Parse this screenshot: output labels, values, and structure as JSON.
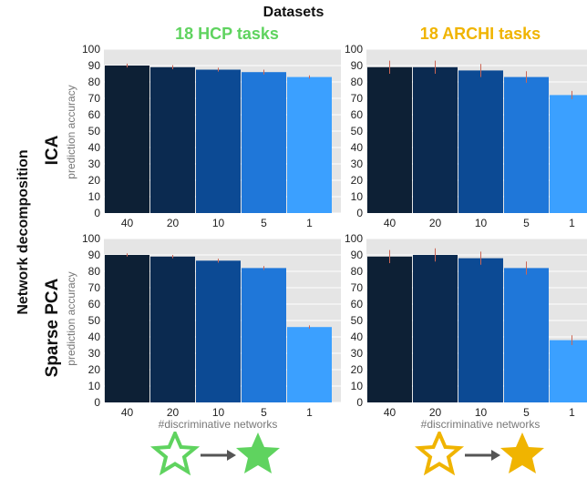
{
  "figure": {
    "title": "Datasets",
    "row_group_label": "Network decomposition",
    "columns": [
      {
        "title": "18 HCP tasks",
        "color": "#5fd35f"
      },
      {
        "title": "18 ARCHI tasks",
        "color": "#f0b400"
      }
    ],
    "rows": [
      {
        "label": "ICA"
      },
      {
        "label": "Sparse PCA"
      }
    ],
    "ylabel": "prediction accuracy",
    "xlabel": "#discriminative networks",
    "star_colors": {
      "hcp": "#5fd35f",
      "archi": "#f0b400"
    },
    "arrow_color": "#555555"
  },
  "chart_data": [
    {
      "type": "bar",
      "panel": "ICA / 18 HCP tasks",
      "categories": [
        "40",
        "20",
        "10",
        "5",
        "1"
      ],
      "values": [
        90,
        89,
        87.5,
        86,
        83
      ],
      "errors": [
        1.2,
        1.2,
        1.2,
        1.5,
        1.0
      ],
      "ylim": [
        0,
        100
      ],
      "yticks": [
        0,
        10,
        20,
        30,
        40,
        50,
        60,
        70,
        80,
        90,
        100
      ],
      "colors": [
        "#0d2035",
        "#0b2a50",
        "#0c4a94",
        "#1f77d9",
        "#3ba0ff"
      ],
      "error_color": "#cc6655",
      "grid": true,
      "background": "#e5e5e5"
    },
    {
      "type": "bar",
      "panel": "ICA / 18 ARCHI tasks",
      "categories": [
        "40",
        "20",
        "10",
        "5",
        "1"
      ],
      "values": [
        89,
        89,
        87,
        83,
        72
      ],
      "errors": [
        4.0,
        4.0,
        4.0,
        3.5,
        2.5
      ],
      "ylim": [
        0,
        100
      ],
      "yticks": [
        0,
        10,
        20,
        30,
        40,
        50,
        60,
        70,
        80,
        90,
        100
      ],
      "colors": [
        "#0d2035",
        "#0b2a50",
        "#0c4a94",
        "#1f77d9",
        "#3ba0ff"
      ],
      "error_color": "#cc6655",
      "grid": true,
      "background": "#e5e5e5"
    },
    {
      "type": "bar",
      "panel": "Sparse PCA / 18 HCP tasks",
      "categories": [
        "40",
        "20",
        "10",
        "5",
        "1"
      ],
      "values": [
        90,
        89,
        86.5,
        82,
        46
      ],
      "errors": [
        1.0,
        1.0,
        1.2,
        1.2,
        1.0
      ],
      "ylim": [
        0,
        100
      ],
      "yticks": [
        0,
        10,
        20,
        30,
        40,
        50,
        60,
        70,
        80,
        90,
        100
      ],
      "colors": [
        "#0d2035",
        "#0b2a50",
        "#0c4a94",
        "#1f77d9",
        "#3ba0ff"
      ],
      "error_color": "#cc6655",
      "grid": true,
      "background": "#e5e5e5"
    },
    {
      "type": "bar",
      "panel": "Sparse PCA / 18 ARCHI tasks",
      "categories": [
        "40",
        "20",
        "10",
        "5",
        "1"
      ],
      "values": [
        89,
        90,
        88,
        82,
        38
      ],
      "errors": [
        4.0,
        4.0,
        4.0,
        4.0,
        3.0
      ],
      "ylim": [
        0,
        100
      ],
      "yticks": [
        0,
        10,
        20,
        30,
        40,
        50,
        60,
        70,
        80,
        90,
        100
      ],
      "colors": [
        "#0d2035",
        "#0b2a50",
        "#0c4a94",
        "#1f77d9",
        "#3ba0ff"
      ],
      "error_color": "#cc6655",
      "grid": true,
      "background": "#e5e5e5"
    }
  ]
}
